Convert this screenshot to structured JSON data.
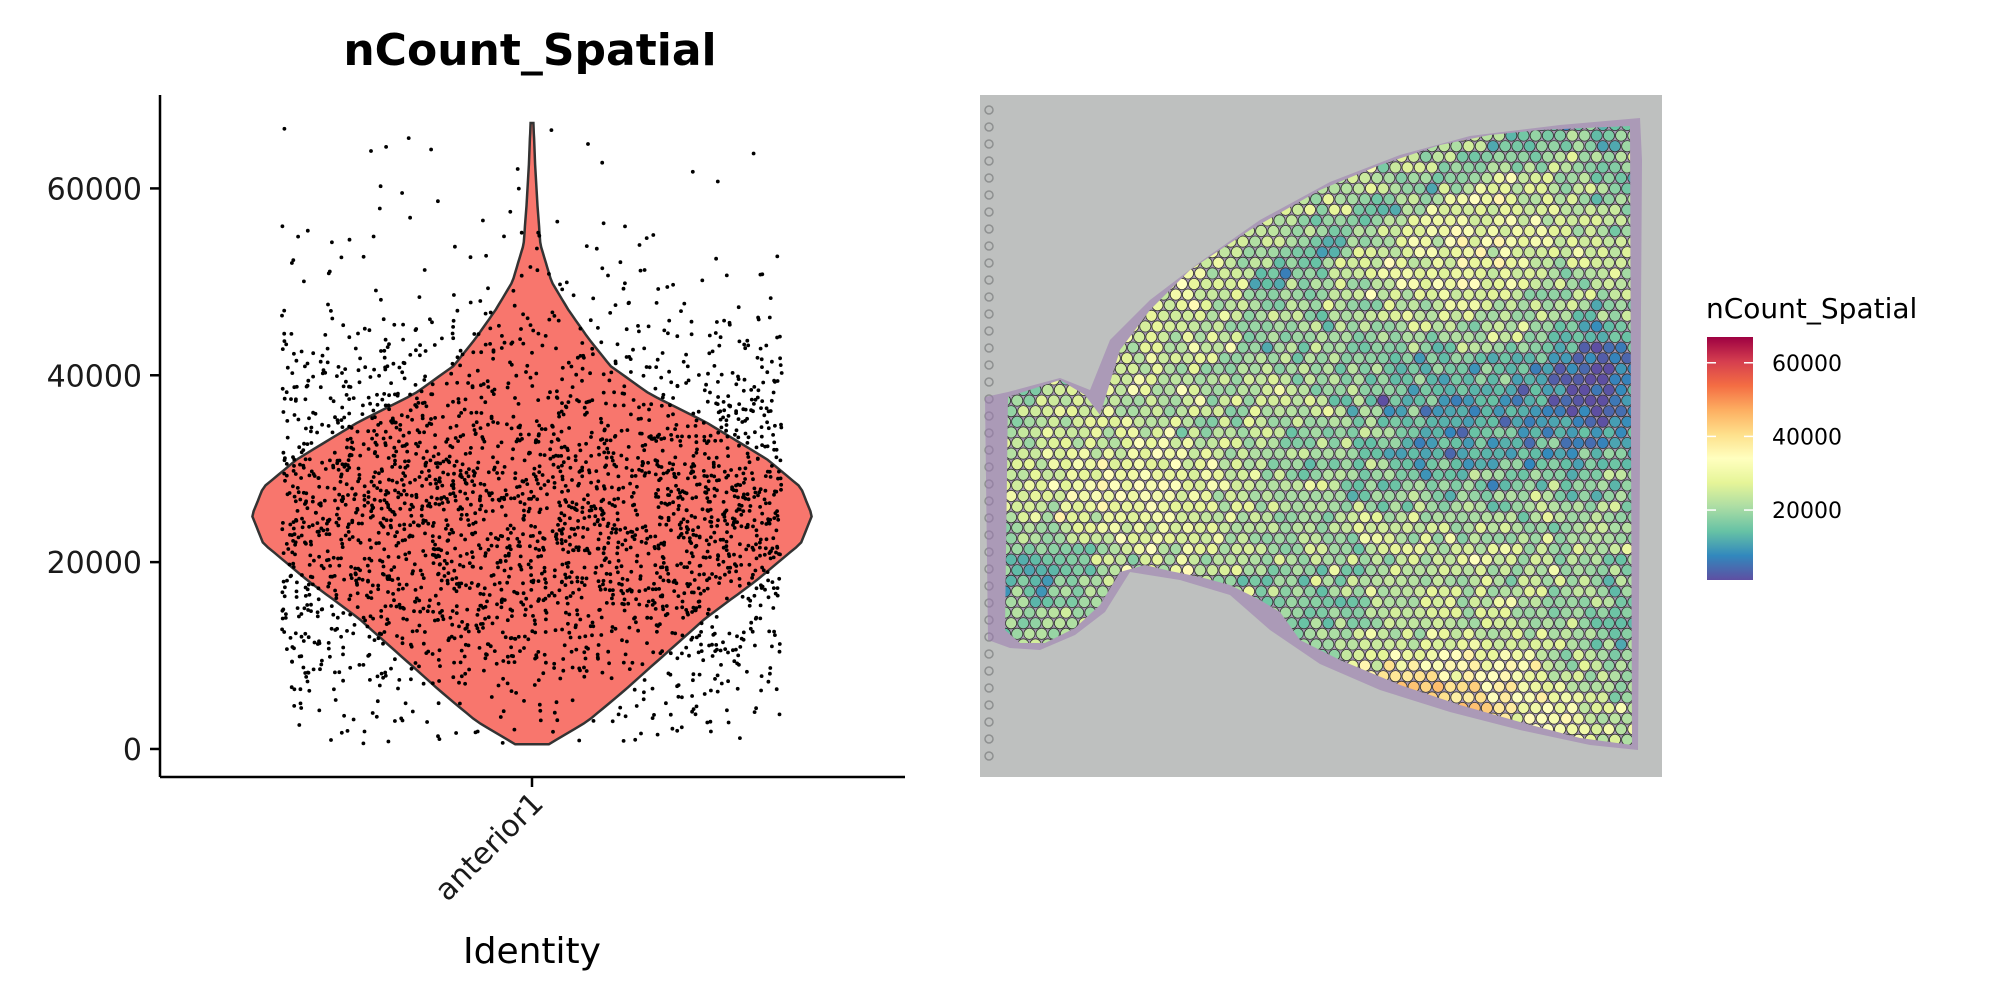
{
  "chart_data": [
    {
      "type": "violin",
      "title": "nCount_Spatial",
      "xlabel": "Identity",
      "ylabel": "",
      "categories": [
        "anterior1"
      ],
      "ylim": [
        -3000,
        70000
      ],
      "yticks": [
        0,
        20000,
        40000,
        60000
      ],
      "ytick_labels": [
        "0",
        "20000",
        "40000",
        "60000"
      ],
      "series": [
        {
          "category": "anterior1",
          "fill": "#f8766d",
          "min": 500,
          "max": 67000,
          "median": 25000,
          "density_profile": [
            [
              500,
              0.06
            ],
            [
              3000,
              0.2
            ],
            [
              6000,
              0.32
            ],
            [
              10000,
              0.47
            ],
            [
              14000,
              0.62
            ],
            [
              18000,
              0.8
            ],
            [
              22000,
              0.96
            ],
            [
              25000,
              1.0
            ],
            [
              28000,
              0.96
            ],
            [
              31000,
              0.84
            ],
            [
              35000,
              0.62
            ],
            [
              38000,
              0.42
            ],
            [
              41000,
              0.28
            ],
            [
              44000,
              0.2
            ],
            [
              47000,
              0.13
            ],
            [
              50000,
              0.07
            ],
            [
              54000,
              0.03
            ],
            [
              58000,
              0.02
            ],
            [
              62000,
              0.012
            ],
            [
              67000,
              0.005
            ]
          ],
          "n_points": 2700
        }
      ],
      "grid": false,
      "legend": "none"
    },
    {
      "type": "spatial",
      "title": "",
      "legend_title": "nCount_Spatial",
      "legend_ticks": [
        20000,
        40000,
        60000
      ],
      "legend_tick_labels": [
        "20000",
        "40000",
        "60000"
      ],
      "color_range": [
        1000,
        67000
      ],
      "colormap": [
        "#5e4fa2",
        "#3288bd",
        "#66c2a5",
        "#abdda4",
        "#e6f598",
        "#ffffbf",
        "#fee08b",
        "#fdae61",
        "#f46d43",
        "#d53e4f",
        "#9e0142"
      ],
      "background": "#bec0bf",
      "legend": "right"
    }
  ]
}
